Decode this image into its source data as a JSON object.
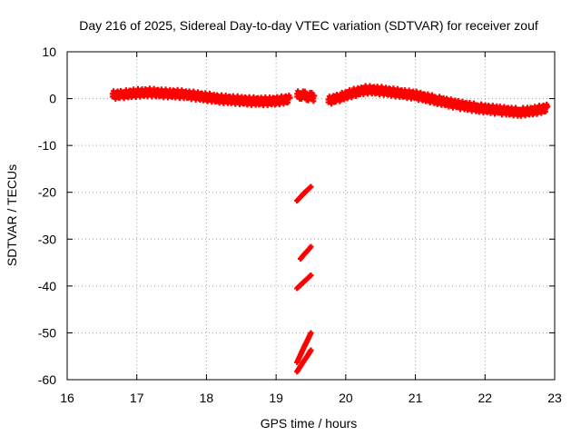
{
  "chart_data": {
    "type": "scatter",
    "title": "Day 216 of 2025, Sidereal Day-to-day VTEC variation (SDTVAR) for receiver zouf",
    "xlabel": "GPS time / hours",
    "ylabel": "SDTVAR / TECUs",
    "xlim": [
      16,
      23
    ],
    "ylim": [
      -60,
      10
    ],
    "xticks": [
      16,
      17,
      18,
      19,
      20,
      21,
      22,
      23
    ],
    "yticks": [
      10,
      0,
      -10,
      -20,
      -30,
      -40,
      -50,
      -60
    ],
    "xtick_labels": [
      "16",
      "17",
      "18",
      "19",
      "20",
      "21",
      "22",
      "23"
    ],
    "ytick_labels": [
      "10",
      "0",
      "-10",
      "-20",
      "-30",
      "-40",
      "-50",
      "-60"
    ],
    "grid": true,
    "marker": "+",
    "color": "#ff0000",
    "series": [
      {
        "name": "main-trace-1",
        "x": [
          16.65,
          16.8,
          17.0,
          17.2,
          17.4,
          17.6,
          17.8,
          18.0,
          18.2,
          18.4,
          18.6,
          18.8,
          19.0,
          19.2
        ],
        "y": [
          1.0,
          1.2,
          1.5,
          1.6,
          1.4,
          1.3,
          1.0,
          0.6,
          0.2,
          0.0,
          -0.2,
          -0.3,
          -0.2,
          0.2
        ]
      },
      {
        "name": "main-trace-2",
        "x": [
          19.3,
          19.35,
          19.4,
          19.45,
          19.5,
          19.55
        ],
        "y": [
          1.0,
          1.1,
          1.0,
          0.8,
          0.7,
          0.6
        ]
      },
      {
        "name": "main-trace-3",
        "x": [
          19.75,
          19.9,
          20.1,
          20.3,
          20.5,
          20.7,
          21.0,
          21.3,
          21.6,
          21.9,
          22.2,
          22.5,
          22.7,
          22.9
        ],
        "y": [
          -0.2,
          0.5,
          1.5,
          2.2,
          2.0,
          1.6,
          1.0,
          0.0,
          -1.0,
          -1.7,
          -2.2,
          -2.6,
          -2.3,
          -1.7
        ]
      },
      {
        "name": "drop-segment-1",
        "x": [
          19.3,
          19.35,
          19.4,
          19.45,
          19.5
        ],
        "y": [
          -21.8,
          -21.0,
          -20.2,
          -19.5,
          -18.8
        ]
      },
      {
        "name": "drop-segment-2",
        "x": [
          19.35,
          19.4,
          19.45,
          19.5
        ],
        "y": [
          -34.2,
          -33.3,
          -32.5,
          -31.6
        ]
      },
      {
        "name": "drop-segment-3",
        "x": [
          19.3,
          19.35,
          19.4,
          19.45,
          19.5
        ],
        "y": [
          -40.5,
          -39.8,
          -39.1,
          -38.4,
          -37.7
        ]
      },
      {
        "name": "drop-segment-4",
        "x": [
          19.3,
          19.35,
          19.4,
          19.45,
          19.5
        ],
        "y": [
          -56.3,
          -54.7,
          -53.1,
          -51.6,
          -50.0
        ]
      },
      {
        "name": "drop-segment-5",
        "x": [
          19.3,
          19.35,
          19.4,
          19.45,
          19.5
        ],
        "y": [
          -58.3,
          -57.1,
          -56.0,
          -54.9,
          -53.7
        ]
      }
    ]
  }
}
